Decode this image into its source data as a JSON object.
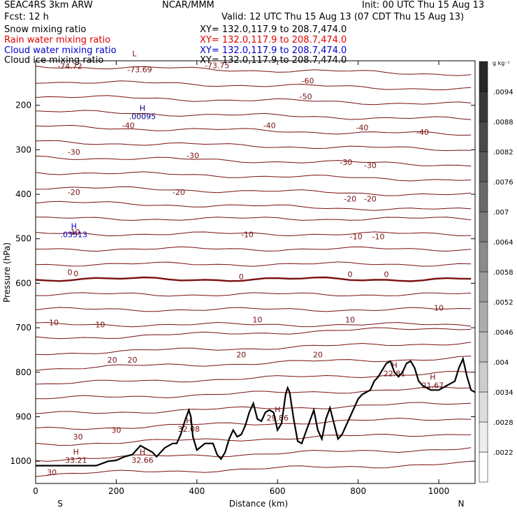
{
  "header": {
    "model": "SEAC4RS 3km ARW",
    "center": "NCAR/MMM",
    "init": "Init: 00 UTC Thu 15 Aug 13",
    "fcst": "Fcst: 12 h",
    "valid": "Valid: 12 UTC Thu 15 Aug 13 (07 CDT Thu 15 Aug 13)"
  },
  "fields": [
    {
      "label": "Snow mixing ratio",
      "xy": "XY= 132.0,117.9 to 208.7,474.0",
      "color": "#000000"
    },
    {
      "label": "Rain water mixing ratio",
      "xy": "XY= 132.0,117.9 to 208.7,474.0",
      "color": "#e00000"
    },
    {
      "label": "Cloud water mixing ratio",
      "xy": "XY= 132.0,117.9 to 208.7,474.0",
      "color": "#0000cc"
    },
    {
      "label": "Cloud ice mixing ratio",
      "xy": "XY= 132.0,117.9 to 208.7,474.0",
      "color": "#000000"
    }
  ],
  "colorbar": {
    "unit": "g kg⁻¹",
    "labels": [
      ".0022",
      ".0028",
      ".0034",
      ".004",
      ".0046",
      ".0052",
      ".0058",
      ".0064",
      ".007",
      ".0076",
      ".0082",
      ".0088",
      ".0094"
    ]
  },
  "chart_data": {
    "type": "line",
    "xlabel": "Distance (km)",
    "ylabel": "Pressure (hPa)",
    "xlim": [
      0,
      1090
    ],
    "ylim": [
      1050,
      100
    ],
    "xticks": [
      0,
      200,
      400,
      600,
      800,
      1000
    ],
    "yticks": [
      200,
      300,
      400,
      500,
      600,
      700,
      800,
      900,
      1000
    ],
    "x_end_labels": {
      "left": "S",
      "right": "N"
    },
    "contour_labels": [
      {
        "x": 85,
        "y": 112,
        "text": "-74.72"
      },
      {
        "x": 258,
        "y": 120,
        "text": "-73.69"
      },
      {
        "x": 450,
        "y": 110,
        "text": "-73.75"
      },
      {
        "x": 675,
        "y": 145,
        "text": "-60"
      },
      {
        "x": 670,
        "y": 180,
        "text": "-50"
      },
      {
        "x": 230,
        "y": 245,
        "text": "-40"
      },
      {
        "x": 580,
        "y": 245,
        "text": "-40"
      },
      {
        "x": 810,
        "y": 250,
        "text": "-40"
      },
      {
        "x": 960,
        "y": 260,
        "text": "-40"
      },
      {
        "x": 95,
        "y": 305,
        "text": "-30"
      },
      {
        "x": 390,
        "y": 313,
        "text": "-30"
      },
      {
        "x": 770,
        "y": 328,
        "text": "-30"
      },
      {
        "x": 830,
        "y": 335,
        "text": "-30"
      },
      {
        "x": 95,
        "y": 395,
        "text": "-20"
      },
      {
        "x": 355,
        "y": 395,
        "text": "-20"
      },
      {
        "x": 780,
        "y": 410,
        "text": "-20"
      },
      {
        "x": 830,
        "y": 410,
        "text": "-20"
      },
      {
        "x": 95,
        "y": 485,
        "text": "-10"
      },
      {
        "x": 525,
        "y": 490,
        "text": "-10"
      },
      {
        "x": 795,
        "y": 495,
        "text": "-10"
      },
      {
        "x": 850,
        "y": 495,
        "text": "-10"
      },
      {
        "x": 85,
        "y": 575,
        "text": "0"
      },
      {
        "x": 100,
        "y": 578,
        "text": "0"
      },
      {
        "x": 510,
        "y": 585,
        "text": "0"
      },
      {
        "x": 780,
        "y": 580,
        "text": "0"
      },
      {
        "x": 870,
        "y": 580,
        "text": "0"
      },
      {
        "x": 1000,
        "y": 655,
        "text": "10"
      },
      {
        "x": 45,
        "y": 688,
        "text": "10"
      },
      {
        "x": 160,
        "y": 693,
        "text": "10"
      },
      {
        "x": 550,
        "y": 682,
        "text": "10"
      },
      {
        "x": 780,
        "y": 682,
        "text": "10"
      },
      {
        "x": 190,
        "y": 772,
        "text": "20"
      },
      {
        "x": 240,
        "y": 772,
        "text": "20"
      },
      {
        "x": 510,
        "y": 760,
        "text": "20"
      },
      {
        "x": 700,
        "y": 760,
        "text": "20"
      },
      {
        "x": 105,
        "y": 945,
        "text": "30"
      },
      {
        "x": 200,
        "y": 930,
        "text": "30"
      },
      {
        "x": 40,
        "y": 1025,
        "text": "30"
      }
    ],
    "extrema": [
      {
        "x": 265,
        "y": 212,
        "mark": "H",
        "value": ".00095",
        "color": "#000080"
      },
      {
        "x": 95,
        "y": 478,
        "mark": "H",
        "value": ".03513",
        "color": "#0000cc"
      },
      {
        "x": 100,
        "y": 985,
        "mark": "H",
        "value": "33.21",
        "color": "#7a1010"
      },
      {
        "x": 265,
        "y": 985,
        "mark": "H",
        "value": "32.66",
        "color": "#7a1010"
      },
      {
        "x": 380,
        "y": 915,
        "mark": "H",
        "value": "32.08",
        "color": "#7a1010"
      },
      {
        "x": 600,
        "y": 890,
        "mark": "H",
        "value": "29.86",
        "color": "#7a1010"
      },
      {
        "x": 890,
        "y": 790,
        "mark": "H",
        "value": "22.81",
        "color": "#7a1010"
      },
      {
        "x": 985,
        "y": 817,
        "mark": "H",
        "value": "21.67",
        "color": "#7a1010"
      },
      {
        "x": 245,
        "y": 90,
        "mark": "L",
        "value": "",
        "color": "#7a1010"
      }
    ],
    "terrain": {
      "x": [
        0,
        150,
        180,
        200,
        220,
        240,
        260,
        280,
        290,
        300,
        320,
        340,
        350,
        360,
        370,
        380,
        385,
        390,
        400,
        420,
        440,
        450,
        460,
        470,
        480,
        490,
        500,
        510,
        520,
        530,
        540,
        550,
        560,
        570,
        580,
        590,
        600,
        610,
        620,
        625,
        630,
        640,
        650,
        660,
        670,
        680,
        690,
        700,
        710,
        720,
        730,
        740,
        750,
        760,
        770,
        780,
        790,
        800,
        810,
        820,
        830,
        840,
        850,
        860,
        870,
        880,
        890,
        900,
        910,
        920,
        930,
        940,
        950,
        960,
        970,
        980,
        990,
        1000,
        1010,
        1020,
        1030,
        1040,
        1050,
        1060,
        1070,
        1080,
        1090
      ],
      "y": [
        1010,
        1010,
        1000,
        998,
        990,
        985,
        965,
        975,
        980,
        990,
        970,
        960,
        960,
        940,
        910,
        885,
        900,
        945,
        975,
        960,
        960,
        985,
        995,
        980,
        950,
        930,
        945,
        940,
        920,
        890,
        870,
        905,
        910,
        890,
        885,
        890,
        930,
        915,
        850,
        835,
        845,
        905,
        955,
        960,
        935,
        910,
        885,
        930,
        950,
        905,
        880,
        915,
        950,
        940,
        920,
        900,
        880,
        860,
        850,
        845,
        840,
        820,
        810,
        795,
        780,
        775,
        800,
        810,
        800,
        780,
        775,
        790,
        820,
        830,
        835,
        840,
        840,
        840,
        835,
        830,
        825,
        820,
        790,
        770,
        810,
        840,
        845
      ]
    }
  }
}
